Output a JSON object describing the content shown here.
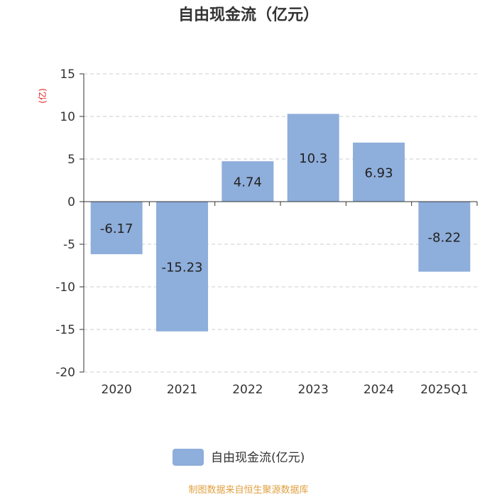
{
  "chart_data": {
    "type": "bar",
    "title": "自由现金流（亿元）",
    "ylabel": "(亿)",
    "categories": [
      "2020",
      "2021",
      "2022",
      "2023",
      "2024",
      "2025Q1"
    ],
    "series": [
      {
        "name": "自由现金流(亿元)",
        "values": [
          -6.17,
          -15.23,
          4.74,
          10.3,
          6.93,
          -8.22
        ]
      }
    ],
    "data_labels": [
      "-6.17",
      "-15.23",
      "4.74",
      "10.3",
      "6.93",
      "-8.22"
    ],
    "ylim": [
      -20,
      15
    ],
    "yticks": [
      15,
      10,
      5,
      0,
      -5,
      -10,
      -15,
      -20
    ],
    "grid": true,
    "legend_position": "bottom",
    "colors": {
      "bar": "#8eaedb",
      "unit_label": "#e02020",
      "source": "#e0a040",
      "grid": "#cccccc"
    }
  },
  "source": "制图数据来自恒生聚源数据库"
}
